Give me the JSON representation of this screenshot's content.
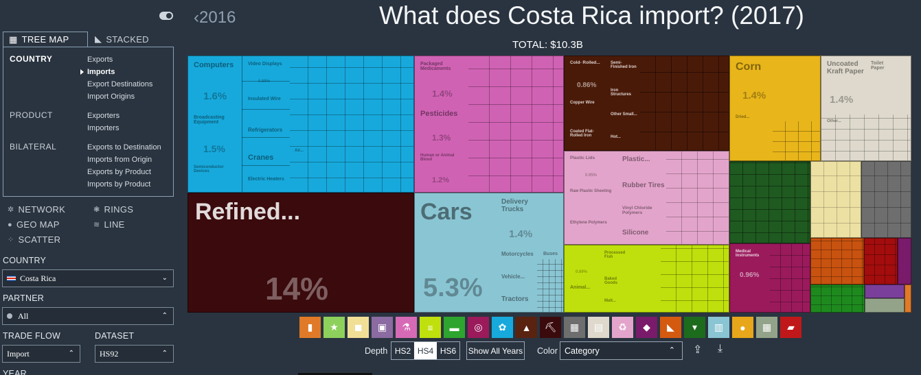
{
  "sidebar": {
    "viz_tabs": [
      {
        "label": "TREE MAP",
        "icon": "treemap-icon"
      },
      {
        "label": "STACKED",
        "icon": "stacked-icon"
      }
    ],
    "menu": [
      {
        "category": "COUNTRY",
        "items": [
          "Exports",
          "Imports",
          "Export Destinations",
          "Import Origins"
        ],
        "selected": "Imports"
      },
      {
        "category": "PRODUCT",
        "items": [
          "Exporters",
          "Importers"
        ]
      },
      {
        "category": "BILATERAL",
        "items": [
          "Exports to Destination",
          "Imports from Origin",
          "Exports by Product",
          "Imports by Product"
        ]
      }
    ],
    "viz_links": [
      "NETWORK",
      "RINGS",
      "GEO MAP",
      "LINE",
      "SCATTER"
    ],
    "country_label": "COUNTRY",
    "country_value": "Costa Rica",
    "partner_label": "PARTNER",
    "partner_value": "All",
    "trade_flow_label": "TRADE FLOW",
    "trade_flow_value": "Import",
    "dataset_label": "DATASET",
    "dataset_value": "HS92",
    "year_label": "YEAR"
  },
  "header": {
    "back_year": "2016",
    "title": "What does Costa Rica import? (2017)",
    "total": "TOTAL: $10.3B"
  },
  "treemap": {
    "labels": {
      "computers": "Computers",
      "video_displays": "Video Displays",
      "video_pct": "0.89%",
      "computers_pct": "1.6%",
      "insulated_wire": "Insulated Wire",
      "broadcasting": "Broadcasting Equipment",
      "refrigerators": "Refrigerators",
      "broadcasting_pct": "1.5%",
      "cranes": "Cranes",
      "air": "Air...",
      "semiconductor": "Semiconductor Devices",
      "electric_heaters": "Electric Heaters",
      "packaged_med": "Packaged Medicaments",
      "packaged_pct": "1.4%",
      "pesticides": "Pesticides",
      "pesticides_pct": "1.3%",
      "human_blood": "Human or Animal Blood",
      "blood_pct": "1.2%",
      "cold_rolled": "Cold- Rolled...",
      "semi_finished": "Semi-Finished Iron",
      "cold_pct": "0.86%",
      "iron_structures": "Iron Structures",
      "copper_wire": "Copper Wire",
      "other_small": "Other Small...",
      "coated_flat": "Coated Flat-Rolled Iron",
      "hot": "Hot...",
      "corn": "Corn",
      "corn_pct": "1.4%",
      "dried": "Dried...",
      "uncoated_kraft": "Uncoated Kraft Paper",
      "toilet_paper": "Toilet Paper",
      "kraft_pct": "1.4%",
      "other": "Other...",
      "plastic_lids": "Plastic Lids",
      "plastic_dots": "Plastic...",
      "plastic_lids_pct": "0.95%",
      "rubber_tires": "Rubber Tires",
      "raw_plastic": "Raw Plastic Sheeting",
      "vinyl_chloride": "Vinyl Chloride Polymers",
      "ethylene": "Ethylene Polymers",
      "silicone": "Silicone",
      "refined": "Refined...",
      "refined_pct": "14%",
      "cars": "Cars",
      "delivery_trucks": "Delivery Trucks",
      "trucks_pct": "1.4%",
      "motorcycles": "Motorcycles",
      "buses": "Buses",
      "vehicle": "Vehicle...",
      "tractors": "Tractors",
      "cars_pct": "5.3%",
      "processed_fish": "Processed Fish",
      "baked_goods": "Baked Goods",
      "animal": "Animal...",
      "malt": "Malt...",
      "animal_pct": "0.69%",
      "medical_instruments": "Medical Instruments",
      "medical_pct": "0.96%"
    },
    "colors": {
      "machinery": "#17a9dc",
      "chemicals": "#d062b4",
      "metals": "#4a1a08",
      "vegetable": "#e8b51a",
      "paper": "#ded9cc",
      "plastics": "#e3a4cb",
      "mineral": "#3a0a0d",
      "transport": "#8ac5d3",
      "foodstuffs": "#bfe00c",
      "instruments": "#9a1a5c",
      "misc_green": "#1f5a20",
      "textiles_tan": "#ece0a2",
      "stone_gray": "#6e6e6e",
      "orange": "#c8520f",
      "red": "#a30d0d"
    }
  },
  "category_icons": [
    {
      "name": "animal-products-icon",
      "color": "#e07a28"
    },
    {
      "name": "vegetable-products-icon",
      "color": "#8ed05c"
    },
    {
      "name": "animal-hides-icon",
      "color": "#f1df96"
    },
    {
      "name": "arts-antiques-icon",
      "color": "#8b6ba1"
    },
    {
      "name": "chemical-products-icon",
      "color": "#d66ab7"
    },
    {
      "name": "foodstuffs-icon",
      "color": "#bfe00c"
    },
    {
      "name": "footwear-icon",
      "color": "#2ea52e"
    },
    {
      "name": "instruments-icon",
      "color": "#9a1a5c"
    },
    {
      "name": "machines-icon",
      "color": "#17a9dc"
    },
    {
      "name": "metals-icon",
      "color": "#5a2310"
    },
    {
      "name": "mineral-products-icon",
      "color": "#3a0a0d"
    },
    {
      "name": "miscellaneous-icon",
      "color": "#6e6e6e"
    },
    {
      "name": "paper-goods-icon",
      "color": "#ded9cc"
    },
    {
      "name": "plastics-rubbers-icon",
      "color": "#e3a4cb"
    },
    {
      "name": "precious-metals-icon",
      "color": "#7a1a6a"
    },
    {
      "name": "stone-glass-icon",
      "color": "#d45a10"
    },
    {
      "name": "textiles-icon",
      "color": "#1d6b1d"
    },
    {
      "name": "transportation-icon",
      "color": "#8ac5d3"
    },
    {
      "name": "vegetable-fats-icon",
      "color": "#e8a61a"
    },
    {
      "name": "weapons-icon",
      "color": "#93a389"
    },
    {
      "name": "wood-products-icon",
      "color": "#c0181a"
    }
  ],
  "controls": {
    "depth_label": "Depth",
    "hs_options": [
      "HS2",
      "HS4",
      "HS6"
    ],
    "hs_selected": "HS4",
    "show_all_years": "Show All Years",
    "color_label": "Color",
    "color_value": "Category"
  }
}
